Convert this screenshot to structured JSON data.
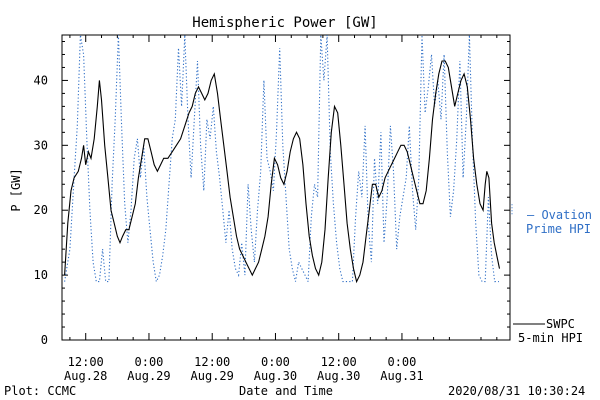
{
  "chart_data": {
    "type": "line",
    "title": "Hemispheric Power [GW]",
    "xlabel": "Date and Time",
    "ylabel": "P [GW]",
    "ylim": [
      0,
      47
    ],
    "yticks": [
      0,
      10,
      20,
      30,
      40
    ],
    "x_unit": "hours since 2020-08-28 00:00",
    "xlim": [
      7.5,
      92.5
    ],
    "xticks": [
      {
        "x": 12,
        "time": "12:00",
        "date": "Aug.28"
      },
      {
        "x": 24,
        "time": "0:00",
        "date": "Aug.29"
      },
      {
        "x": 36,
        "time": "12:00",
        "date": "Aug.29"
      },
      {
        "x": 48,
        "time": "0:00",
        "date": "Aug.30"
      },
      {
        "x": 60,
        "time": "12:00",
        "date": "Aug.30"
      },
      {
        "x": 72,
        "time": "0:00",
        "date": "Aug.31"
      }
    ],
    "series": [
      {
        "name": "SWPC 5-min HPI",
        "color": "#000000",
        "style": "solid",
        "points": [
          [
            8.0,
            10
          ],
          [
            8.6,
            18
          ],
          [
            9.2,
            23
          ],
          [
            9.8,
            25
          ],
          [
            10.6,
            26
          ],
          [
            11.2,
            28
          ],
          [
            11.6,
            30
          ],
          [
            12.0,
            27
          ],
          [
            12.5,
            29
          ],
          [
            13.0,
            28
          ],
          [
            13.6,
            31
          ],
          [
            14.2,
            36
          ],
          [
            14.6,
            40
          ],
          [
            15.0,
            37
          ],
          [
            15.6,
            30
          ],
          [
            16.2,
            25
          ],
          [
            16.8,
            20
          ],
          [
            17.4,
            18
          ],
          [
            18.0,
            16
          ],
          [
            18.5,
            15
          ],
          [
            19.0,
            16
          ],
          [
            19.6,
            17
          ],
          [
            20.2,
            17
          ],
          [
            20.8,
            19
          ],
          [
            21.4,
            21
          ],
          [
            22.0,
            25
          ],
          [
            22.6,
            28
          ],
          [
            23.2,
            31
          ],
          [
            23.8,
            31
          ],
          [
            24.4,
            29
          ],
          [
            25.0,
            27
          ],
          [
            25.6,
            26
          ],
          [
            26.2,
            27
          ],
          [
            26.8,
            28
          ],
          [
            27.6,
            28
          ],
          [
            28.4,
            29
          ],
          [
            29.2,
            30
          ],
          [
            30.0,
            31
          ],
          [
            30.8,
            33
          ],
          [
            31.6,
            35
          ],
          [
            32.2,
            36
          ],
          [
            32.8,
            38
          ],
          [
            33.4,
            39
          ],
          [
            34.0,
            38
          ],
          [
            34.6,
            37
          ],
          [
            35.2,
            38
          ],
          [
            35.8,
            40
          ],
          [
            36.4,
            41
          ],
          [
            37.0,
            38
          ],
          [
            37.6,
            34
          ],
          [
            38.2,
            30
          ],
          [
            38.8,
            26
          ],
          [
            39.4,
            22
          ],
          [
            40.0,
            19
          ],
          [
            40.6,
            16
          ],
          [
            41.2,
            14
          ],
          [
            41.8,
            13
          ],
          [
            42.4,
            12
          ],
          [
            43.0,
            11
          ],
          [
            43.6,
            10
          ],
          [
            44.2,
            11
          ],
          [
            44.8,
            12
          ],
          [
            45.4,
            14
          ],
          [
            46.0,
            16
          ],
          [
            46.6,
            19
          ],
          [
            47.2,
            24
          ],
          [
            47.8,
            28
          ],
          [
            48.4,
            27
          ],
          [
            49.0,
            25
          ],
          [
            49.6,
            24
          ],
          [
            50.2,
            26
          ],
          [
            50.8,
            29
          ],
          [
            51.4,
            31
          ],
          [
            52.0,
            32
          ],
          [
            52.6,
            31
          ],
          [
            53.2,
            27
          ],
          [
            53.8,
            21
          ],
          [
            54.4,
            16
          ],
          [
            55.0,
            13
          ],
          [
            55.6,
            11
          ],
          [
            56.2,
            10
          ],
          [
            56.8,
            12
          ],
          [
            57.4,
            17
          ],
          [
            58.0,
            25
          ],
          [
            58.6,
            32
          ],
          [
            59.2,
            36
          ],
          [
            59.8,
            35
          ],
          [
            60.4,
            30
          ],
          [
            61.0,
            24
          ],
          [
            61.6,
            18
          ],
          [
            62.2,
            14
          ],
          [
            62.8,
            11
          ],
          [
            63.4,
            9
          ],
          [
            64.0,
            10
          ],
          [
            64.6,
            12
          ],
          [
            65.2,
            16
          ],
          [
            65.8,
            20
          ],
          [
            66.4,
            24
          ],
          [
            67.0,
            24
          ],
          [
            67.6,
            22
          ],
          [
            68.2,
            23
          ],
          [
            68.8,
            25
          ],
          [
            69.4,
            26
          ],
          [
            70.0,
            27
          ],
          [
            70.6,
            28
          ],
          [
            71.2,
            29
          ],
          [
            71.8,
            30
          ],
          [
            72.4,
            30
          ],
          [
            73.0,
            29
          ],
          [
            73.6,
            27
          ],
          [
            74.2,
            25
          ],
          [
            74.8,
            23
          ],
          [
            75.4,
            21
          ],
          [
            76.0,
            21
          ],
          [
            76.6,
            23
          ],
          [
            77.2,
            28
          ],
          [
            77.8,
            34
          ],
          [
            78.4,
            38
          ],
          [
            79.0,
            41
          ],
          [
            79.6,
            43
          ],
          [
            80.2,
            43
          ],
          [
            80.8,
            42
          ],
          [
            81.4,
            39
          ],
          [
            82.0,
            36
          ],
          [
            82.6,
            38
          ],
          [
            83.2,
            40
          ],
          [
            83.8,
            41
          ],
          [
            84.4,
            39
          ],
          [
            85.0,
            34
          ],
          [
            85.6,
            28
          ],
          [
            86.2,
            24
          ],
          [
            86.8,
            21
          ],
          [
            87.4,
            20
          ],
          [
            87.8,
            24
          ],
          [
            88.1,
            26
          ],
          [
            88.5,
            25
          ],
          [
            89.0,
            18
          ],
          [
            89.5,
            15
          ],
          [
            90.0,
            13
          ],
          [
            90.5,
            11
          ]
        ]
      },
      {
        "name": "Ovation Prime HPI",
        "color": "#2f6fc6",
        "style": "dotted",
        "points": [
          [
            8.0,
            9
          ],
          [
            9.0,
            14
          ],
          [
            9.8,
            25
          ],
          [
            10.4,
            33
          ],
          [
            11.0,
            47
          ],
          [
            11.6,
            44
          ],
          [
            12.2,
            31
          ],
          [
            12.8,
            20
          ],
          [
            13.4,
            12
          ],
          [
            14.0,
            9
          ],
          [
            14.6,
            9
          ],
          [
            15.2,
            14
          ],
          [
            15.8,
            9
          ],
          [
            16.4,
            9
          ],
          [
            17.0,
            24
          ],
          [
            17.6,
            34
          ],
          [
            18.2,
            47
          ],
          [
            18.8,
            33
          ],
          [
            19.4,
            21
          ],
          [
            20.0,
            15
          ],
          [
            20.6,
            20
          ],
          [
            21.2,
            28
          ],
          [
            21.8,
            31
          ],
          [
            22.4,
            25
          ],
          [
            23.0,
            30
          ],
          [
            23.6,
            22
          ],
          [
            24.2,
            17
          ],
          [
            24.8,
            12
          ],
          [
            25.4,
            9
          ],
          [
            26.0,
            10
          ],
          [
            26.6,
            13
          ],
          [
            27.2,
            17
          ],
          [
            27.8,
            24
          ],
          [
            28.4,
            31
          ],
          [
            29.0,
            34
          ],
          [
            29.6,
            45
          ],
          [
            30.2,
            36
          ],
          [
            30.8,
            47
          ],
          [
            31.4,
            34
          ],
          [
            32.0,
            25
          ],
          [
            32.6,
            34
          ],
          [
            33.2,
            43
          ],
          [
            33.8,
            30
          ],
          [
            34.4,
            23
          ],
          [
            35.0,
            34
          ],
          [
            35.6,
            31
          ],
          [
            36.2,
            36
          ],
          [
            36.8,
            29
          ],
          [
            37.4,
            25
          ],
          [
            38.0,
            20
          ],
          [
            38.6,
            15
          ],
          [
            39.2,
            20
          ],
          [
            39.8,
            14
          ],
          [
            40.4,
            11
          ],
          [
            41.0,
            10
          ],
          [
            41.6,
            15
          ],
          [
            42.2,
            10
          ],
          [
            42.8,
            24
          ],
          [
            43.4,
            17
          ],
          [
            44.0,
            12
          ],
          [
            44.6,
            20
          ],
          [
            45.2,
            26
          ],
          [
            45.8,
            40
          ],
          [
            46.4,
            28
          ],
          [
            47.0,
            26
          ],
          [
            47.6,
            23
          ],
          [
            48.2,
            32
          ],
          [
            48.8,
            45
          ],
          [
            49.4,
            30
          ],
          [
            50.0,
            22
          ],
          [
            50.6,
            14
          ],
          [
            51.2,
            11
          ],
          [
            51.8,
            9
          ],
          [
            52.4,
            12
          ],
          [
            53.0,
            11
          ],
          [
            53.6,
            10
          ],
          [
            54.2,
            9
          ],
          [
            54.8,
            19
          ],
          [
            55.4,
            24
          ],
          [
            56.0,
            22
          ],
          [
            56.6,
            47
          ],
          [
            57.2,
            40
          ],
          [
            57.8,
            47
          ],
          [
            58.4,
            29
          ],
          [
            59.0,
            21
          ],
          [
            59.6,
            15
          ],
          [
            60.2,
            11
          ],
          [
            60.8,
            9
          ],
          [
            61.4,
            9
          ],
          [
            62.0,
            9
          ],
          [
            62.6,
            9
          ],
          [
            63.2,
            19
          ],
          [
            63.8,
            26
          ],
          [
            64.4,
            22
          ],
          [
            65.0,
            33
          ],
          [
            65.6,
            18
          ],
          [
            66.2,
            12
          ],
          [
            66.8,
            28
          ],
          [
            67.4,
            21
          ],
          [
            68.0,
            32
          ],
          [
            68.6,
            15
          ],
          [
            69.2,
            22
          ],
          [
            69.8,
            33
          ],
          [
            70.4,
            26
          ],
          [
            71.0,
            14
          ],
          [
            71.6,
            19
          ],
          [
            72.2,
            22
          ],
          [
            72.8,
            25
          ],
          [
            73.4,
            33
          ],
          [
            74.0,
            23
          ],
          [
            74.6,
            17
          ],
          [
            75.2,
            25
          ],
          [
            75.8,
            47
          ],
          [
            76.4,
            35
          ],
          [
            77.0,
            39
          ],
          [
            77.6,
            44
          ],
          [
            78.2,
            36
          ],
          [
            78.8,
            40
          ],
          [
            79.4,
            34
          ],
          [
            80.0,
            44
          ],
          [
            80.6,
            29
          ],
          [
            81.2,
            19
          ],
          [
            81.8,
            23
          ],
          [
            82.4,
            31
          ],
          [
            83.0,
            43
          ],
          [
            83.6,
            25
          ],
          [
            84.2,
            34
          ],
          [
            84.8,
            47
          ],
          [
            85.4,
            30
          ],
          [
            86.0,
            18
          ],
          [
            86.6,
            10
          ],
          [
            87.2,
            9
          ],
          [
            87.8,
            9
          ],
          [
            88.4,
            22
          ],
          [
            89.0,
            13
          ],
          [
            89.6,
            9
          ],
          [
            90.4,
            9
          ]
        ]
      }
    ],
    "legend": {
      "ovation": {
        "line1": "— Ovation",
        "line2": "Prime HPI",
        "color": "#2f6fc6",
        "level": 20
      },
      "swpc": {
        "line1": "SWPC",
        "line2": "5-min HPI",
        "color": "#000000",
        "level": 2
      }
    },
    "footer": {
      "left": "Plot: CCMC",
      "right": "2020/08/31  10:30:24"
    }
  }
}
